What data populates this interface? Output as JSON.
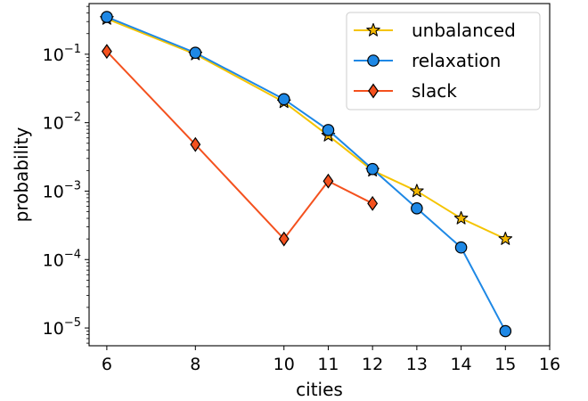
{
  "chart_data": {
    "type": "line",
    "xlabel": "cities",
    "ylabel": "probability",
    "x_scale": "linear",
    "y_scale": "log",
    "xlim": [
      5.6,
      16
    ],
    "ylim": [
      5.5e-06,
      0.55
    ],
    "x_ticks": [
      6,
      8,
      10,
      11,
      12,
      13,
      14,
      15,
      16
    ],
    "x_tick_labels": [
      "6",
      "8",
      "10",
      "11",
      "12",
      "13",
      "14",
      "15",
      "16"
    ],
    "y_ticks": [
      1e-05,
      0.0001,
      0.001,
      0.01,
      0.1
    ],
    "y_tick_labels": [
      {
        "base": "10",
        "exp": "−5"
      },
      {
        "base": "10",
        "exp": "−4"
      },
      {
        "base": "10",
        "exp": "−3"
      },
      {
        "base": "10",
        "exp": "−2"
      },
      {
        "base": "10",
        "exp": "−1"
      }
    ],
    "grid": false,
    "legend": {
      "position": "top-right",
      "entries": [
        "unbalanced",
        "relaxation",
        "slack"
      ]
    },
    "series": [
      {
        "name": "unbalanced",
        "marker": "star",
        "line_color": "#f5c400",
        "marker_color": "#f5b800",
        "x": [
          6,
          8,
          10,
          11,
          12,
          13,
          14,
          15
        ],
        "y": [
          0.33,
          0.1,
          0.02,
          0.0065,
          0.002,
          0.001,
          0.0004,
          0.0002
        ]
      },
      {
        "name": "relaxation",
        "marker": "circle",
        "line_color": "#1e88e5",
        "marker_color": "#1e88e5",
        "x": [
          6,
          8,
          10,
          11,
          12,
          13,
          14,
          15
        ],
        "y": [
          0.35,
          0.105,
          0.022,
          0.0078,
          0.0021,
          0.00056,
          0.00015,
          9e-06
        ]
      },
      {
        "name": "slack",
        "marker": "diamond",
        "line_color": "#f4511e",
        "marker_color": "#f4511e",
        "x": [
          6,
          8,
          10,
          11,
          12
        ],
        "y": [
          0.11,
          0.0048,
          0.0002,
          0.0014,
          0.00066
        ]
      }
    ]
  }
}
